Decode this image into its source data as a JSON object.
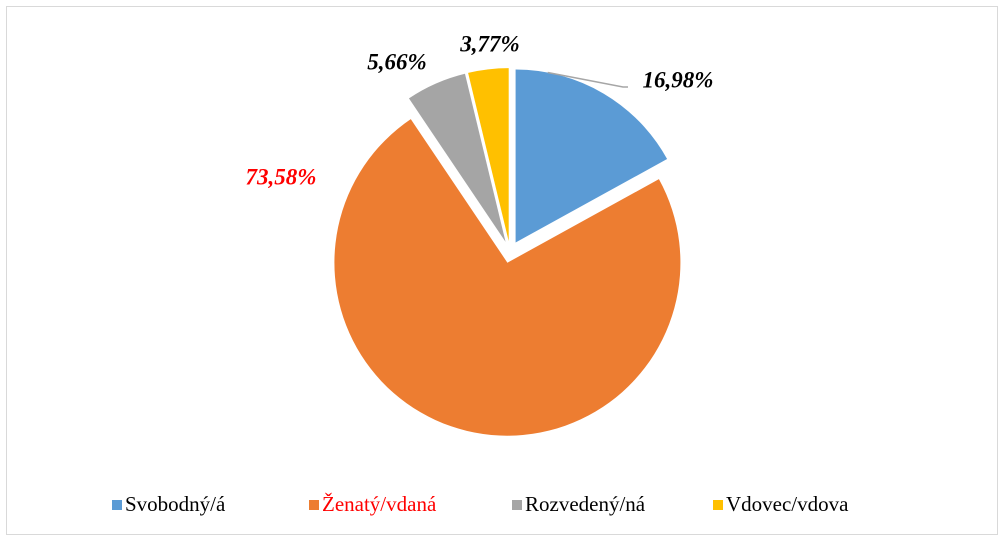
{
  "chart_data": {
    "type": "pie",
    "categories": [
      "Svobodný/á",
      "Ženatý/vdaná",
      "Rozvedený/ná",
      "Vdovec/vdova"
    ],
    "values": [
      16.98,
      73.58,
      5.66,
      3.77
    ],
    "value_labels": [
      "16,98%",
      "73,58%",
      "5,66%",
      "3,77%"
    ],
    "colors": [
      "#5b9bd5",
      "#ed7d31",
      "#a5a5a5",
      "#ffc000"
    ],
    "label_colors": [
      "#000000",
      "#ff0000",
      "#000000",
      "#000000"
    ],
    "legend": "bottom"
  }
}
